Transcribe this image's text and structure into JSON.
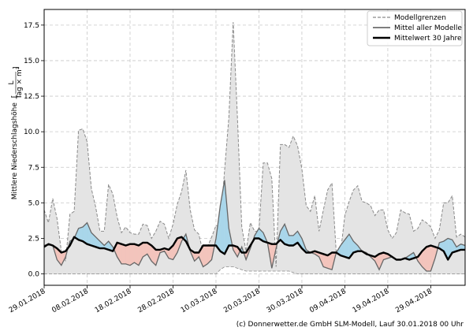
{
  "ylabel_main": "Mittlere Niederschlagshöhe",
  "ylabel_unit_num": "L",
  "ylabel_unit_den": "Tag × m²",
  "credit": "(c) Donnerwetter.de GmbH SLM-Modell, Lauf 30.01.2018 00 Uhr",
  "colors": {
    "envelope_fill": "#e4e4e4",
    "envelope_line": "#8a8a8a",
    "mean_line": "#666666",
    "clim_line": "#000000",
    "above_fill": "#a9d6ea",
    "below_fill": "#f3c4bc",
    "grid": "#c8c8c8"
  },
  "chart_data": {
    "type": "line",
    "x_start": "2018-01-29",
    "ylim": [
      -0.8,
      18.6
    ],
    "yticks": [
      0.0,
      2.5,
      5.0,
      7.5,
      10.0,
      12.5,
      15.0,
      17.5
    ],
    "ytick_labels": [
      "0.0",
      "2.5",
      "5.0",
      "7.5",
      "10.0",
      "12.5",
      "15.0",
      "17.5"
    ],
    "xtick_labels": [
      "29.01.2018",
      "08.02.2018",
      "18.02.2018",
      "28.02.2018",
      "10.03.2018",
      "20.03.2018",
      "30.03.2018",
      "09.04.2018",
      "19.04.2018",
      "29.04.2018"
    ],
    "grid": true,
    "legend_position": "top-right",
    "legend": [
      "Modellgrenzen",
      "Mittel aller Modelle",
      "Mittelwert 30 Jahre"
    ],
    "series": [
      {
        "name": "Modellgrenzen",
        "style": "dashed-upper",
        "x": [
          "2018-01-29",
          "2018-01-30",
          "2018-01-31",
          "2018-02-01",
          "2018-02-02",
          "2018-02-03",
          "2018-02-04",
          "2018-02-05",
          "2018-02-06",
          "2018-02-07",
          "2018-02-08",
          "2018-02-09",
          "2018-02-10",
          "2018-02-11",
          "2018-02-12",
          "2018-02-13",
          "2018-02-14",
          "2018-02-15",
          "2018-02-16",
          "2018-02-17",
          "2018-02-18",
          "2018-02-19",
          "2018-02-20",
          "2018-02-21",
          "2018-02-22",
          "2018-02-23",
          "2018-02-24",
          "2018-02-25",
          "2018-02-26",
          "2018-02-27",
          "2018-02-28",
          "2018-03-01",
          "2018-03-02",
          "2018-03-03",
          "2018-03-04",
          "2018-03-05",
          "2018-03-06",
          "2018-03-07",
          "2018-03-08",
          "2018-03-09",
          "2018-03-10",
          "2018-03-11",
          "2018-03-12",
          "2018-03-13",
          "2018-03-14",
          "2018-03-15",
          "2018-03-16",
          "2018-03-17",
          "2018-03-18",
          "2018-03-19",
          "2018-03-20",
          "2018-03-21",
          "2018-03-22",
          "2018-03-23",
          "2018-03-24",
          "2018-03-25",
          "2018-03-26",
          "2018-03-27",
          "2018-03-28",
          "2018-03-29",
          "2018-03-30",
          "2018-03-31",
          "2018-04-01",
          "2018-04-02",
          "2018-04-03",
          "2018-04-04",
          "2018-04-05",
          "2018-04-06",
          "2018-04-07",
          "2018-04-08",
          "2018-04-09",
          "2018-04-10",
          "2018-04-11",
          "2018-04-12",
          "2018-04-13",
          "2018-04-14",
          "2018-04-15",
          "2018-04-16",
          "2018-04-17",
          "2018-04-18",
          "2018-04-19",
          "2018-04-20",
          "2018-04-21",
          "2018-04-22",
          "2018-04-23",
          "2018-04-24",
          "2018-04-25",
          "2018-04-26",
          "2018-04-27",
          "2018-04-28",
          "2018-04-29",
          "2018-04-30",
          "2018-05-01",
          "2018-05-02",
          "2018-05-03",
          "2018-05-04",
          "2018-05-05",
          "2018-05-06",
          "2018-05-07"
        ],
        "values": [
          4.5,
          3.6,
          5.3,
          3.9,
          1.6,
          0.9,
          4.2,
          4.4,
          10.1,
          10.2,
          9.3,
          6.0,
          4.7,
          3.0,
          3.0,
          6.3,
          5.6,
          4.0,
          2.9,
          3.3,
          2.9,
          2.8,
          2.8,
          3.5,
          3.4,
          2.5,
          3.0,
          3.7,
          3.5,
          2.5,
          3.5,
          4.9,
          5.8,
          7.3,
          4.5,
          3.1,
          2.8,
          1.5,
          1.9,
          2.6,
          3.4,
          3.3,
          7.3,
          11.0,
          17.7,
          11.0,
          3.3,
          1.6,
          3.6,
          3.0,
          3.0,
          7.8,
          7.8,
          6.7,
          0.5,
          9.1,
          9.1,
          8.9,
          9.7,
          9.0,
          7.4,
          4.8,
          4.4,
          5.5,
          3.0,
          4.5,
          5.9,
          6.4,
          1.5,
          1.5,
          4.1,
          5.1,
          5.9,
          6.2,
          5.1,
          5.0,
          4.8,
          4.1,
          4.5,
          4.5,
          3.1,
          2.5,
          2.9,
          4.5,
          4.3,
          4.2,
          3.0,
          3.2,
          3.8,
          3.6,
          3.3,
          2.5,
          3.1,
          5.0,
          5.0,
          5.5,
          2.6,
          2.8,
          2.6
        ],
        "lower": [
          0.0,
          0.0,
          0.0,
          0.0,
          0.0,
          0.0,
          0.0,
          0.0,
          0.0,
          0.0,
          0.0,
          0.0,
          0.0,
          0.0,
          0.0,
          0.0,
          0.0,
          0.0,
          0.0,
          0.0,
          0.0,
          0.0,
          0.0,
          0.0,
          0.0,
          0.0,
          0.0,
          0.0,
          0.0,
          0.0,
          0.0,
          0.0,
          0.0,
          0.0,
          0.0,
          0.0,
          0.0,
          0.0,
          0.0,
          0.0,
          0.0,
          0.3,
          0.5,
          0.5,
          0.5,
          0.4,
          0.3,
          0.2,
          0.2,
          0.2,
          0.2,
          0.2,
          0.2,
          0.2,
          0.2,
          0.2,
          0.2,
          0.2,
          0.1,
          0.0,
          0.0,
          0.0,
          0.0,
          0.0,
          0.0,
          0.0,
          0.0,
          0.0,
          0.0,
          0.0,
          0.0,
          0.0,
          0.0,
          0.0,
          0.0,
          0.0,
          0.0,
          0.0,
          0.0,
          0.0,
          0.0,
          0.0,
          0.0,
          0.0,
          0.0,
          0.0,
          0.0,
          0.0,
          0.0,
          0.0,
          0.0,
          0.0,
          0.0,
          0.0,
          0.0,
          0.0,
          0.0,
          0.0,
          0.0
        ]
      },
      {
        "name": "Mittel aller Modelle",
        "values": [
          2.0,
          2.1,
          2.0,
          1.0,
          0.6,
          1.2,
          2.3,
          2.5,
          3.2,
          3.3,
          3.6,
          2.9,
          2.6,
          2.3,
          2.0,
          2.3,
          1.9,
          1.2,
          0.7,
          0.7,
          0.6,
          0.8,
          0.6,
          1.2,
          1.4,
          0.9,
          0.6,
          1.5,
          1.6,
          1.1,
          1.0,
          1.5,
          2.3,
          2.8,
          1.6,
          0.9,
          1.2,
          0.5,
          0.7,
          1.0,
          2.5,
          4.8,
          6.6,
          3.2,
          1.7,
          1.2,
          1.9,
          1.0,
          1.8,
          2.7,
          3.2,
          2.9,
          2.2,
          0.4,
          1.8,
          3.0,
          3.5,
          2.7,
          2.7,
          3.0,
          2.5,
          1.7,
          1.5,
          1.4,
          1.2,
          0.5,
          0.4,
          0.3,
          1.5,
          2.0,
          2.4,
          2.8,
          2.3,
          2.0,
          1.6,
          1.5,
          1.2,
          0.9,
          0.3,
          1.0,
          1.1,
          1.2,
          1.0,
          1.0,
          1.1,
          1.3,
          1.5,
          0.9,
          0.5,
          0.2,
          0.2,
          1.1,
          2.2,
          2.3,
          2.5,
          2.4,
          1.9,
          2.1,
          2.0
        ]
      },
      {
        "name": "Mittelwert 30 Jahre",
        "values": [
          1.9,
          2.1,
          2.0,
          1.8,
          1.5,
          1.6,
          2.0,
          2.6,
          2.4,
          2.3,
          2.1,
          2.0,
          1.9,
          1.8,
          1.8,
          1.7,
          1.6,
          2.2,
          2.1,
          2.0,
          2.1,
          2.1,
          2.0,
          2.2,
          2.2,
          2.0,
          1.7,
          1.7,
          1.8,
          1.7,
          2.0,
          2.5,
          2.6,
          2.3,
          1.7,
          1.5,
          1.5,
          2.0,
          2.0,
          2.0,
          2.0,
          1.6,
          1.4,
          2.0,
          2.0,
          1.9,
          1.5,
          1.5,
          2.0,
          2.5,
          2.5,
          2.3,
          2.2,
          2.1,
          2.1,
          2.4,
          2.1,
          2.0,
          2.0,
          2.2,
          1.8,
          1.5,
          1.5,
          1.6,
          1.5,
          1.4,
          1.3,
          1.5,
          1.5,
          1.3,
          1.2,
          1.1,
          1.5,
          1.6,
          1.6,
          1.4,
          1.3,
          1.2,
          1.4,
          1.5,
          1.4,
          1.2,
          1.0,
          1.0,
          1.1,
          1.0,
          1.1,
          1.2,
          1.6,
          1.9,
          2.0,
          1.9,
          1.8,
          1.6,
          1.0,
          1.5,
          1.6,
          1.7,
          1.7
        ]
      }
    ]
  }
}
